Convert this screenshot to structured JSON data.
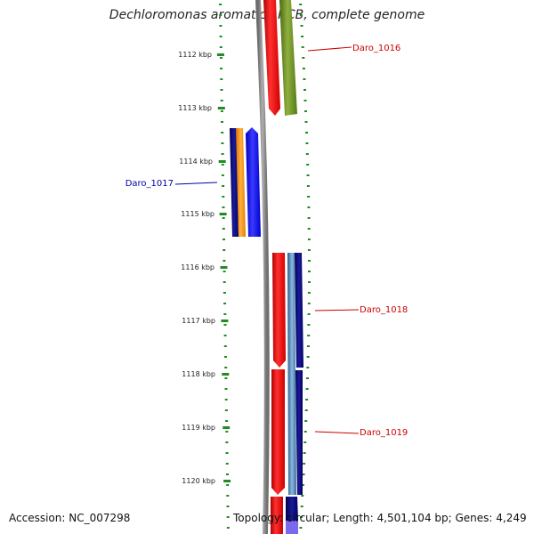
{
  "title": "Dechloromonas aromatica RCB, complete genome",
  "accession": "Accession: NC_007298",
  "topology": "Topology: circular; Length: 4,501,104 bp; Genes: 4,249",
  "ticks": [
    "1112 kbp",
    "1113 kbp",
    "1114 kbp",
    "1115 kbp",
    "1116 kbp",
    "1117 kbp",
    "1118 kbp",
    "1119 kbp",
    "1120 kbp"
  ],
  "genes": [
    {
      "name": "Daro_1016",
      "color": "#cc0000"
    },
    {
      "name": "Daro_1017",
      "color": "#0000aa"
    },
    {
      "name": "Daro_1018",
      "color": "#cc0000"
    },
    {
      "name": "Daro_1019",
      "color": "#cc0000"
    }
  ],
  "colors": {
    "backbone": "#808080",
    "ticks": "#228b22",
    "red_feature": "#ff0000",
    "olive_feature": "#6b8e23",
    "navy_feature": "#000080",
    "orange_feature": "#ff8c00",
    "blue_feature": "#0000ff",
    "steel_feature": "#4682b4",
    "lavender_feature": "#7b68ee"
  }
}
